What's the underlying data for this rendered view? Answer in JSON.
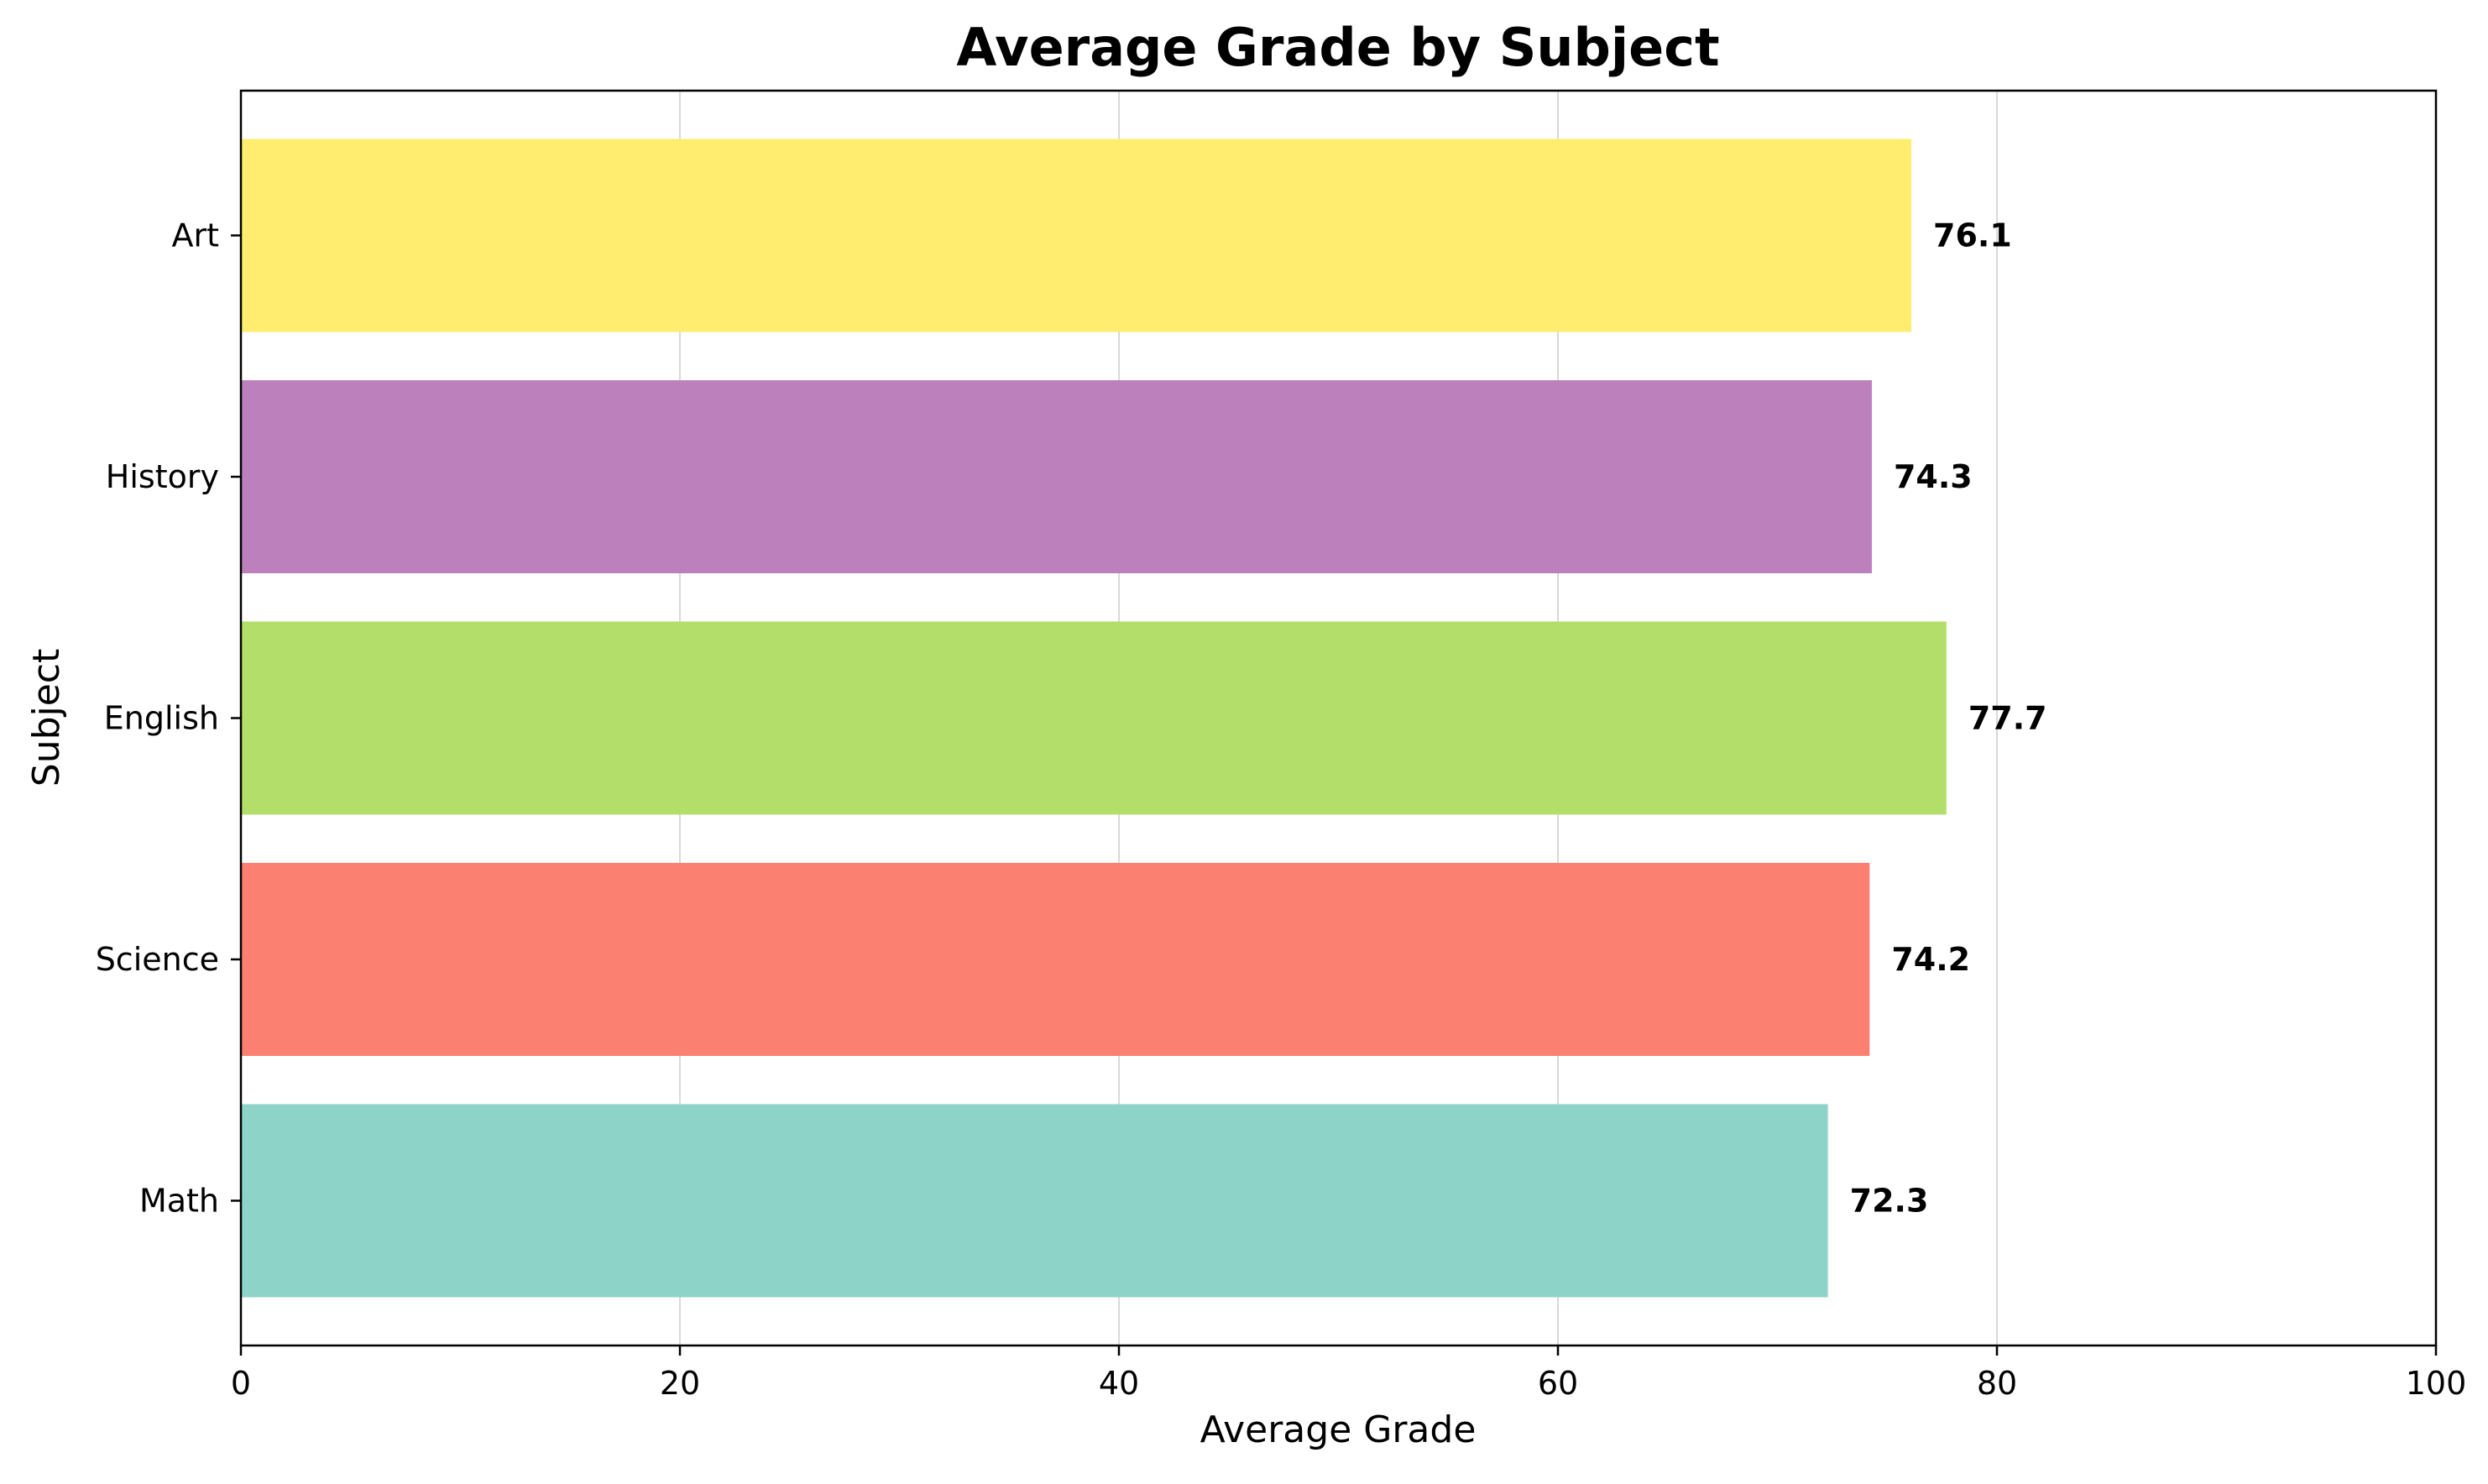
{
  "chart_data": {
    "type": "bar",
    "orientation": "horizontal",
    "title": "Average Grade by Subject",
    "xlabel": "Average Grade",
    "ylabel": "Subject",
    "xlim": [
      0,
      100
    ],
    "xticks": [
      0,
      20,
      40,
      60,
      80,
      100
    ],
    "grid": "vertical",
    "categories": [
      "Math",
      "Science",
      "English",
      "History",
      "Art"
    ],
    "values": [
      72.3,
      74.2,
      77.7,
      74.3,
      76.1
    ],
    "value_labels": [
      "72.3",
      "74.2",
      "77.7",
      "74.3",
      "76.1"
    ],
    "colors": [
      "#8dd3c7",
      "#fb8072",
      "#b3de69",
      "#bc80bd",
      "#ffed6f"
    ]
  }
}
